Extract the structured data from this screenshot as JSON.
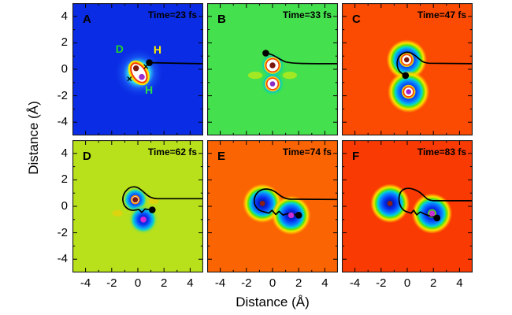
{
  "figure": {
    "x_axis_label": "Distance (Å)",
    "y_axis_label": "Distance (Å)"
  },
  "chart_data": {
    "type": "heatmap",
    "layout": "2 rows x 3 columns of square map panels sharing axes",
    "axis_range": [
      -5,
      5
    ],
    "x_ticks": [
      -4,
      -2,
      0,
      2,
      4
    ],
    "y_ticks": [
      4,
      2,
      0,
      -2,
      -4
    ],
    "minor_tick_step": 1,
    "trajectory_color": "#000000",
    "panels": [
      {
        "label": "A",
        "time": "Time=23 fs",
        "bg": "#0a2ce4",
        "glow": {
          "x": 0.08,
          "y": -0.27,
          "r": 1.95,
          "grad": "gGlowA"
        },
        "kidney": {
          "x": 0.08,
          "y": -0.27,
          "rx": 0.82,
          "ry": 0.5,
          "angle": 57,
          "fill": "#ffffff",
          "stroke": "#ff3c00",
          "outer_stroke": "#ffe400"
        },
        "blobs": [
          {
            "x": -0.14,
            "y": 0.08,
            "dot": "#7a160e",
            "dot_r": 0.22
          },
          {
            "x": 0.3,
            "y": -0.58,
            "dot": "#9d2fd0",
            "dot_r": 0.23
          }
        ],
        "crosses": [
          [
            0.62,
            0.2
          ],
          [
            -0.64,
            -0.72
          ]
        ],
        "atom_labels": [
          {
            "text": "D",
            "x": -1.4,
            "y": 1.25,
            "color": "#21d52b"
          },
          {
            "text": "H",
            "x": 1.5,
            "y": 1.2,
            "color": "#ffee00"
          },
          {
            "text": "H",
            "x": 0.85,
            "y": -1.85,
            "color": "#2bdd44"
          }
        ],
        "trajectory": [
          "M",
          0.88,
          0.5,
          "L",
          5,
          0.42
        ],
        "trajectory_dot": [
          0.88,
          0.5
        ]
      },
      {
        "label": "B",
        "time": "Time=33 fs",
        "bg": "#45e04e",
        "smudges": [
          {
            "x": -1.32,
            "y": -0.45,
            "rx": 0.55,
            "ry": 0.28,
            "color": "#f0f000",
            "opacity": 0.55
          },
          {
            "x": 1.32,
            "y": -0.45,
            "rx": 0.55,
            "ry": 0.28,
            "color": "#f0f000",
            "opacity": 0.55
          }
        ],
        "blobs": [
          {
            "x": 0,
            "y": 0.3,
            "disk_r": 0.95,
            "grad": "gB",
            "ring_r": 0.5,
            "dot": "#7a160e",
            "dot_r": 0.22
          },
          {
            "x": 0,
            "y": -1.1,
            "disk_r": 0.9,
            "grad": "gB",
            "ring_r": 0.44,
            "dot": "#8b2cc4",
            "dot_r": 0.2
          }
        ],
        "trajectory": [
          "M",
          -0.52,
          1.22,
          "C",
          0.1,
          1.16,
          0.5,
          0.72,
          1.05,
          0.55,
          "C",
          1.7,
          0.42,
          2.6,
          0.42,
          5,
          0.42
        ],
        "trajectory_dot": [
          -0.52,
          1.22
        ]
      },
      {
        "label": "C",
        "time": "Time=47 fs",
        "bg": "#fb4a02",
        "blobs": [
          {
            "x": -0.04,
            "y": 0.72,
            "disk_r": 1.55,
            "grad": "gC",
            "ring_r": 0.4,
            "dot": "#7a160e",
            "dot_r": 0.2
          },
          {
            "x": 0.1,
            "y": -1.7,
            "disk_r": 1.6,
            "grad": "gC",
            "ring_r": 0.38,
            "dot": "#a21fd0",
            "dot_r": 0.2
          }
        ],
        "trajectory": [
          "M",
          5,
          0.42,
          "L",
          1.7,
          0.46,
          "C",
          0.95,
          0.5,
          0.9,
          0.92,
          0.4,
          1.18,
          "C",
          -0.15,
          1.47,
          -0.73,
          1.1,
          -0.77,
          0.5,
          "C",
          -0.8,
          0.0,
          -0.52,
          -0.3,
          -0.16,
          -0.44
        ],
        "trajectory_dot": [
          -0.13,
          -0.47
        ]
      },
      {
        "label": "D",
        "time": "Time=62 fs",
        "bg": "#b8e11c",
        "smudges": [
          {
            "x": 1.2,
            "y": 0.4,
            "rx": 0.4,
            "ry": 0.25,
            "color": "#ffc800",
            "opacity": 0.5
          },
          {
            "x": -1.55,
            "y": -0.52,
            "rx": 0.4,
            "ry": 0.25,
            "color": "#ffc800",
            "opacity": 0.5
          }
        ],
        "blobs": [
          {
            "x": -0.2,
            "y": 0.5,
            "disk_r": 1.0,
            "grad": "gD",
            "ring_r": 0.3,
            "ring_stroke": "#ff9000",
            "dot": "#7a160e",
            "dot_r": 0.21
          },
          {
            "x": 0.42,
            "y": -1.0,
            "disk_r": 1.15,
            "grad": "gD",
            "dot": "#d428d8",
            "dot_r": 0.23
          }
        ],
        "trajectory": [
          "M",
          5,
          0.58,
          "L",
          1.45,
          0.58,
          "C",
          0.72,
          0.62,
          0.6,
          1.05,
          0.05,
          1.38,
          "C",
          -0.6,
          1.72,
          -1.18,
          1.05,
          -1.15,
          0.5,
          "C",
          -1.12,
          -0.05,
          -0.7,
          -0.33,
          -0.3,
          -0.3,
          "L",
          0.08,
          -0.24,
          "L",
          0.3,
          -0.46,
          "L",
          0.55,
          -0.2,
          "L",
          1.05,
          -0.28
        ],
        "trajectory_dot": [
          1.1,
          -0.27
        ]
      },
      {
        "label": "E",
        "time": "Time=74 fs",
        "bg": "#fb6402",
        "blobs": [
          {
            "x": -0.78,
            "y": 0.22,
            "disk_r": 1.5,
            "grad": "gC",
            "dot": "#8c1f14",
            "dot_r": 0.2
          },
          {
            "x": 1.42,
            "y": -0.68,
            "disk_r": 1.5,
            "grad": "gC",
            "dot": "#cb2ed0",
            "dot_r": 0.22
          }
        ],
        "trajectory": [
          "M",
          5,
          0.52,
          "L",
          1.35,
          0.54,
          "C",
          0.62,
          0.6,
          0.5,
          0.98,
          0.0,
          1.2,
          "C",
          -0.55,
          1.44,
          -1.2,
          1.28,
          -1.38,
          0.62,
          "C",
          -1.5,
          0.05,
          -1.1,
          -0.32,
          -0.72,
          -0.4,
          "L",
          -0.28,
          -0.52,
          "L",
          -0.04,
          -0.3,
          "L",
          0.25,
          -0.62,
          "L",
          0.5,
          -0.38,
          "L",
          0.8,
          -0.66,
          "L",
          1.2,
          -0.55,
          "L",
          1.92,
          -0.66
        ],
        "trajectory_dot": [
          2.0,
          -0.67
        ]
      },
      {
        "label": "F",
        "time": "Time=83 fs",
        "bg": "#f93a02",
        "blobs": [
          {
            "x": -1.32,
            "y": 0.22,
            "disk_r": 1.5,
            "grad": "gC",
            "dot": "#8c2014",
            "dot_r": 0.2
          },
          {
            "x": 1.9,
            "y": -0.55,
            "disk_r": 1.55,
            "grad": "gC",
            "halo_r": 0.34,
            "halo_color": "#52d41e",
            "dot": "#cb2ed0",
            "dot_r": 0.22
          }
        ],
        "trajectory": [
          "M",
          5,
          0.42,
          "L",
          2.1,
          0.42,
          "C",
          1.3,
          0.44,
          1.38,
          0.9,
          0.7,
          1.2,
          "C",
          0.0,
          1.52,
          -0.55,
          1.35,
          -0.62,
          0.7,
          "C",
          -0.68,
          0.12,
          -0.4,
          -0.28,
          -0.08,
          -0.4,
          "L",
          0.3,
          -0.52,
          "L",
          0.5,
          -0.3,
          "L",
          0.72,
          -0.64,
          "L",
          1.0,
          -0.42,
          "L",
          1.4,
          -0.62,
          "L",
          2.18,
          -0.85
        ],
        "trajectory_dot": [
          2.28,
          -0.88
        ]
      }
    ]
  }
}
